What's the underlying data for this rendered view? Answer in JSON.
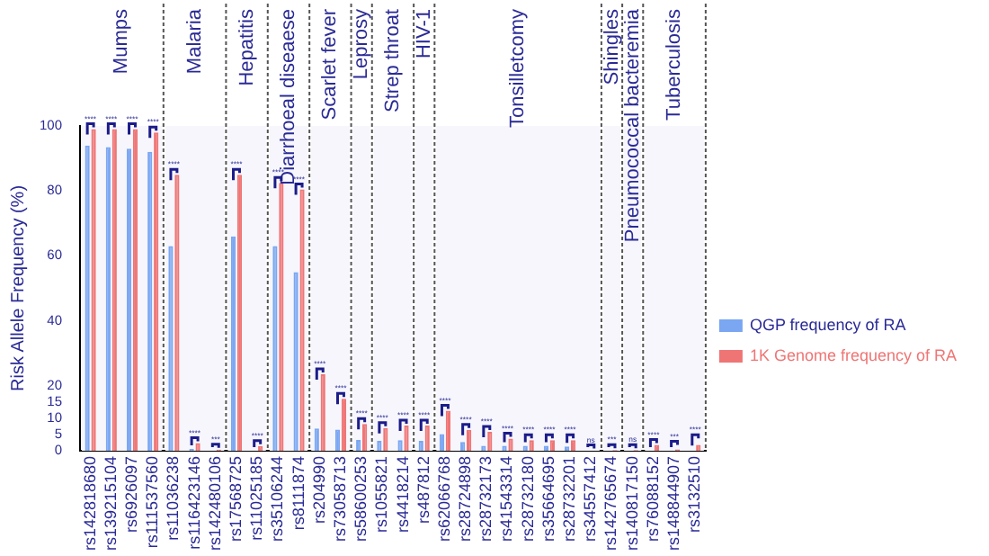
{
  "chart_data": {
    "type": "bar",
    "ylabel": "Risk Allele Frequency (%)",
    "categories": [
      "rs142818680",
      "rs139215104",
      "rs6926097",
      "rs111537560",
      "rs11036238",
      "rs116423146",
      "rs142480106",
      "rs17568725",
      "rs11025185",
      "rs35106244",
      "rs8111874",
      "rs204990",
      "rs73058713",
      "rs58600253",
      "rs1055821",
      "rs4418214",
      "rs487812",
      "rs62066768",
      "rs28724898",
      "rs28732173",
      "rs41543314",
      "rs28732180",
      "rs35664695",
      "rs28732201",
      "rs34557412",
      "rs142765674",
      "rs140817150",
      "rs76088152",
      "rs148844907",
      "rs3132510"
    ],
    "series": [
      {
        "name": "QGP frequency of RA",
        "color": "#7aa6f2",
        "values": [
          94,
          93.5,
          93,
          92,
          63,
          0.5,
          0,
          66,
          0,
          63,
          55,
          6.8,
          6.5,
          3.3,
          3.0,
          3.2,
          3.0,
          5.1,
          2.7,
          1.5,
          1.5,
          1.5,
          1.5,
          1.3,
          0,
          0,
          0,
          0,
          0,
          0
        ]
      },
      {
        "name": "1K Genome frequency of RA",
        "color": "#ef7575",
        "values": [
          99,
          99,
          99,
          98,
          85,
          2.3,
          0.3,
          85,
          1.4,
          82.5,
          80.5,
          23.5,
          16,
          8.2,
          7.0,
          7.7,
          7.7,
          12.3,
          6.4,
          5.8,
          3.7,
          3.2,
          3.2,
          3.2,
          null,
          0.2,
          0.2,
          1.8,
          0.4,
          1.8
        ]
      }
    ],
    "ylim": [
      0,
      100
    ],
    "yticks": [
      0,
      5,
      10,
      15,
      20,
      40,
      60,
      80,
      100
    ],
    "legend": "right",
    "grid": false,
    "bands": [
      {
        "axis": "x",
        "from": "rs142818680",
        "to": "rs111537560",
        "label": "Mumps",
        "color": "#f6f6fc"
      },
      {
        "axis": "x",
        "from": "rs11036238",
        "to": "rs142480106",
        "label": "Malaria",
        "color": "#f6f6fc"
      },
      {
        "axis": "x",
        "from": "rs17568725",
        "to": "rs11025185",
        "label": "Hepatitis",
        "color": "#f6f6fc"
      },
      {
        "axis": "x",
        "from": "rs35106244",
        "to": "rs8111874",
        "label": "Diarrhoeal diseaese",
        "color": "#f6f6fc"
      },
      {
        "axis": "x",
        "from": "rs204990",
        "to": "rs73058713",
        "label": "Scarlet fever",
        "color": "#f6f6fc"
      },
      {
        "axis": "x",
        "from": "rs58600253",
        "to": "rs58600253",
        "label": "Leprosy",
        "color": "#f6f6fc"
      },
      {
        "axis": "x",
        "from": "rs1055821",
        "to": "rs4418214",
        "label": "Strep throat",
        "color": "#f6f6fc"
      },
      {
        "axis": "x",
        "from": "rs487812",
        "to": "rs487812",
        "label": "HIV-1",
        "color": "#f6f6fc"
      },
      {
        "axis": "x",
        "from": "rs62066768",
        "to": "rs34557412",
        "label": "Tonsilletcomy",
        "color": "#f6f6fc"
      },
      {
        "axis": "x",
        "from": "rs142765674",
        "to": "rs142765674",
        "label": "Shingles",
        "color": "#f6f6fc"
      },
      {
        "axis": "x",
        "from": "rs140817150",
        "to": "rs140817150",
        "label": "Pneumococcal bacteremia",
        "color": "#f6f6fc"
      },
      {
        "axis": "x",
        "from": "rs76088152",
        "to": "rs3132510",
        "label": "Tuberculosis",
        "color": "#f6f6fc"
      }
    ],
    "annotations": [
      {
        "text": "****",
        "x": "rs142818680",
        "y": 99
      },
      {
        "text": "****",
        "x": "rs139215104",
        "y": 99
      },
      {
        "text": "****",
        "x": "rs6926097",
        "y": 99
      },
      {
        "text": "****",
        "x": "rs111537560",
        "y": 98
      },
      {
        "text": "****",
        "x": "rs11036238",
        "y": 85
      },
      {
        "text": "****",
        "x": "rs116423146",
        "y": 2.3
      },
      {
        "text": "***",
        "x": "rs142480106",
        "y": 0.3
      },
      {
        "text": "****",
        "x": "rs17568725",
        "y": 85
      },
      {
        "text": "****",
        "x": "rs11025185",
        "y": 1.4
      },
      {
        "text": "****",
        "x": "rs35106244",
        "y": 82.5
      },
      {
        "text": "****",
        "x": "rs8111874",
        "y": 80.5
      },
      {
        "text": "****",
        "x": "rs204990",
        "y": 23.5
      },
      {
        "text": "****",
        "x": "rs73058713",
        "y": 16
      },
      {
        "text": "****",
        "x": "rs58600253",
        "y": 8.2
      },
      {
        "text": "****",
        "x": "rs1055821",
        "y": 7.0
      },
      {
        "text": "****",
        "x": "rs4418214",
        "y": 7.7
      },
      {
        "text": "****",
        "x": "rs487812",
        "y": 7.7
      },
      {
        "text": "****",
        "x": "rs62066768",
        "y": 12.3
      },
      {
        "text": "****",
        "x": "rs28724898",
        "y": 6.4
      },
      {
        "text": "****",
        "x": "rs28732173",
        "y": 5.8
      },
      {
        "text": "****",
        "x": "rs41543314",
        "y": 3.7
      },
      {
        "text": "****",
        "x": "rs28732180",
        "y": 3.2
      },
      {
        "text": "****",
        "x": "rs35664695",
        "y": 3.2
      },
      {
        "text": "****",
        "x": "rs28732201",
        "y": 3.2
      },
      {
        "text": "ns",
        "x": "rs34557412",
        "y": 0.1
      },
      {
        "text": "***",
        "x": "rs142765674",
        "y": 0.2
      },
      {
        "text": "ns",
        "x": "rs140817150",
        "y": 0.2
      },
      {
        "text": "****",
        "x": "rs76088152",
        "y": 1.8
      },
      {
        "text": "***",
        "x": "rs148844907",
        "y": 1.2
      },
      {
        "text": "****",
        "x": "rs3132510",
        "y": 3.2
      }
    ]
  }
}
